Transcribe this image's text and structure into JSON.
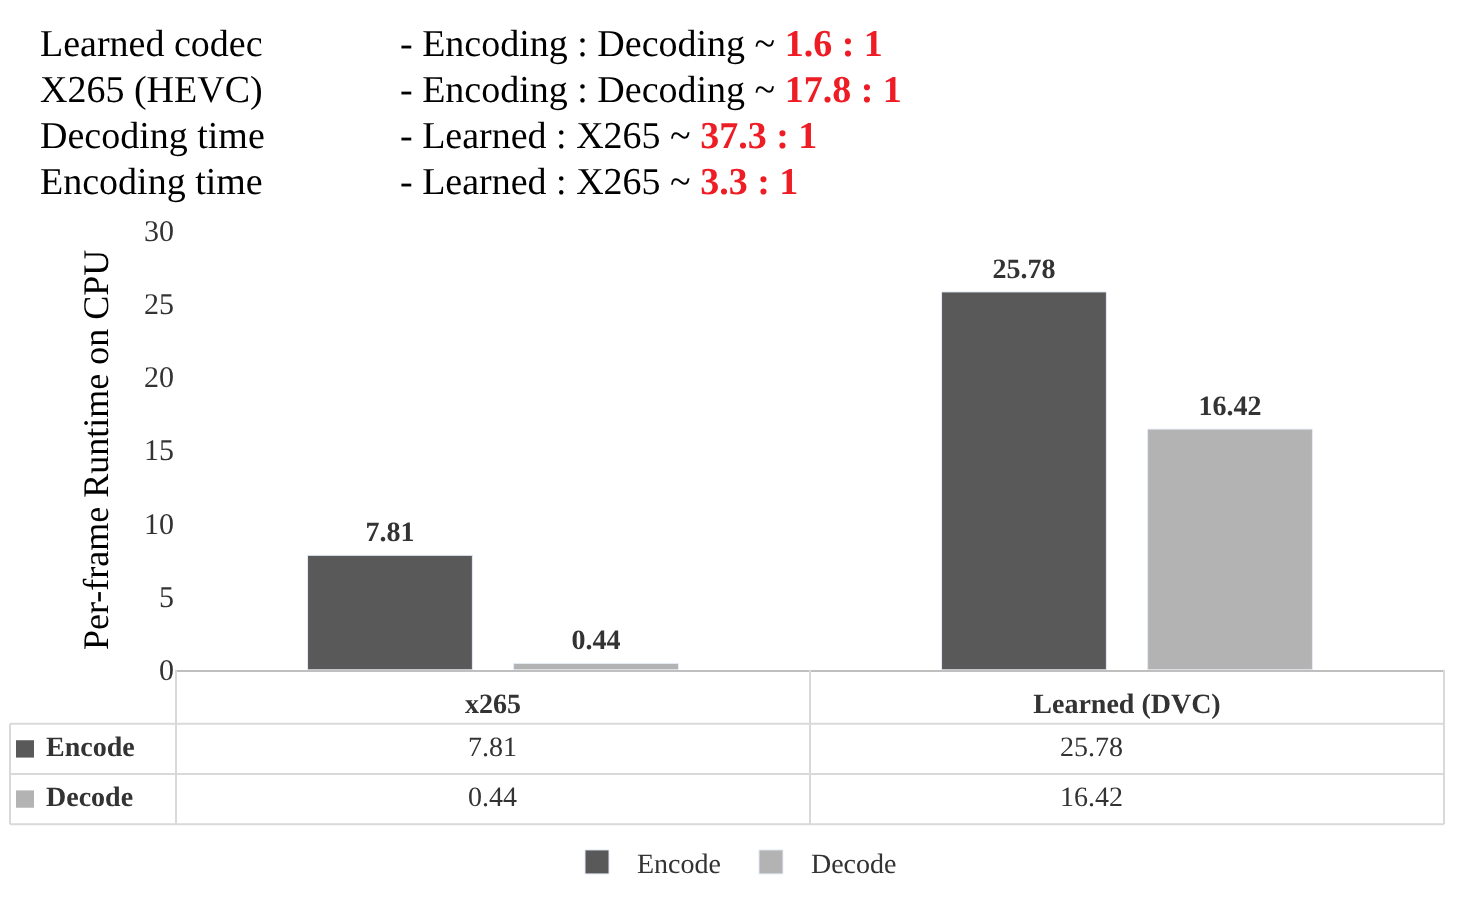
{
  "chart_data": {
    "type": "bar",
    "ylabel": "Per-frame Runtime on CPU",
    "categories": [
      "x265",
      "Learned (DVC)"
    ],
    "series": [
      {
        "name": "Encode",
        "color": "#595959",
        "values": [
          7.81,
          25.78
        ],
        "value_labels": [
          "7.81",
          "25.78"
        ]
      },
      {
        "name": "Decode",
        "color": "#b3b3b3",
        "values": [
          0.44,
          16.42
        ],
        "value_labels": [
          "0.44",
          "16.42"
        ]
      }
    ],
    "ylim": [
      0,
      30
    ],
    "yticks": [
      0,
      5,
      10,
      15,
      20,
      25,
      30
    ],
    "grid": false,
    "legend": "bottom",
    "data_labels": true,
    "annotations": [
      "Learned codec - Encoding : Decoding ~ 1.6 : 1",
      "X265 (HEVC) - Encoding : Decoding ~ 17.8 : 1",
      "Decoding time - Learned : X265 ~ 37.3 : 1",
      "Encoding time - Learned : X265 ~ 3.3 : 1"
    ]
  }
}
